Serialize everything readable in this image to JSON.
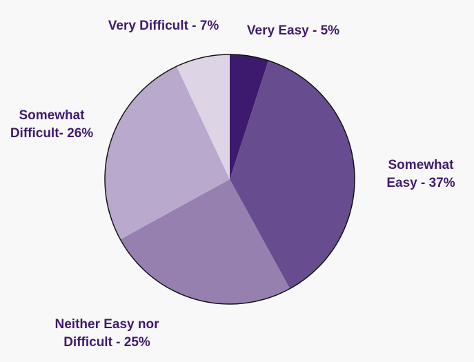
{
  "chart_data": {
    "type": "pie",
    "categories": [
      "Very Easy - 5%",
      "Somewhat Easy - 37%",
      "Neither Easy nor Difficult - 25%",
      "Somewhat Difficult- 26%",
      "Very Difficult - 7%"
    ],
    "values": [
      5,
      37,
      25,
      26,
      7
    ],
    "colors": [
      "#3d1a6e",
      "#674d8f",
      "#9580b0",
      "#b9a9cc",
      "#ddd5e6"
    ]
  }
}
